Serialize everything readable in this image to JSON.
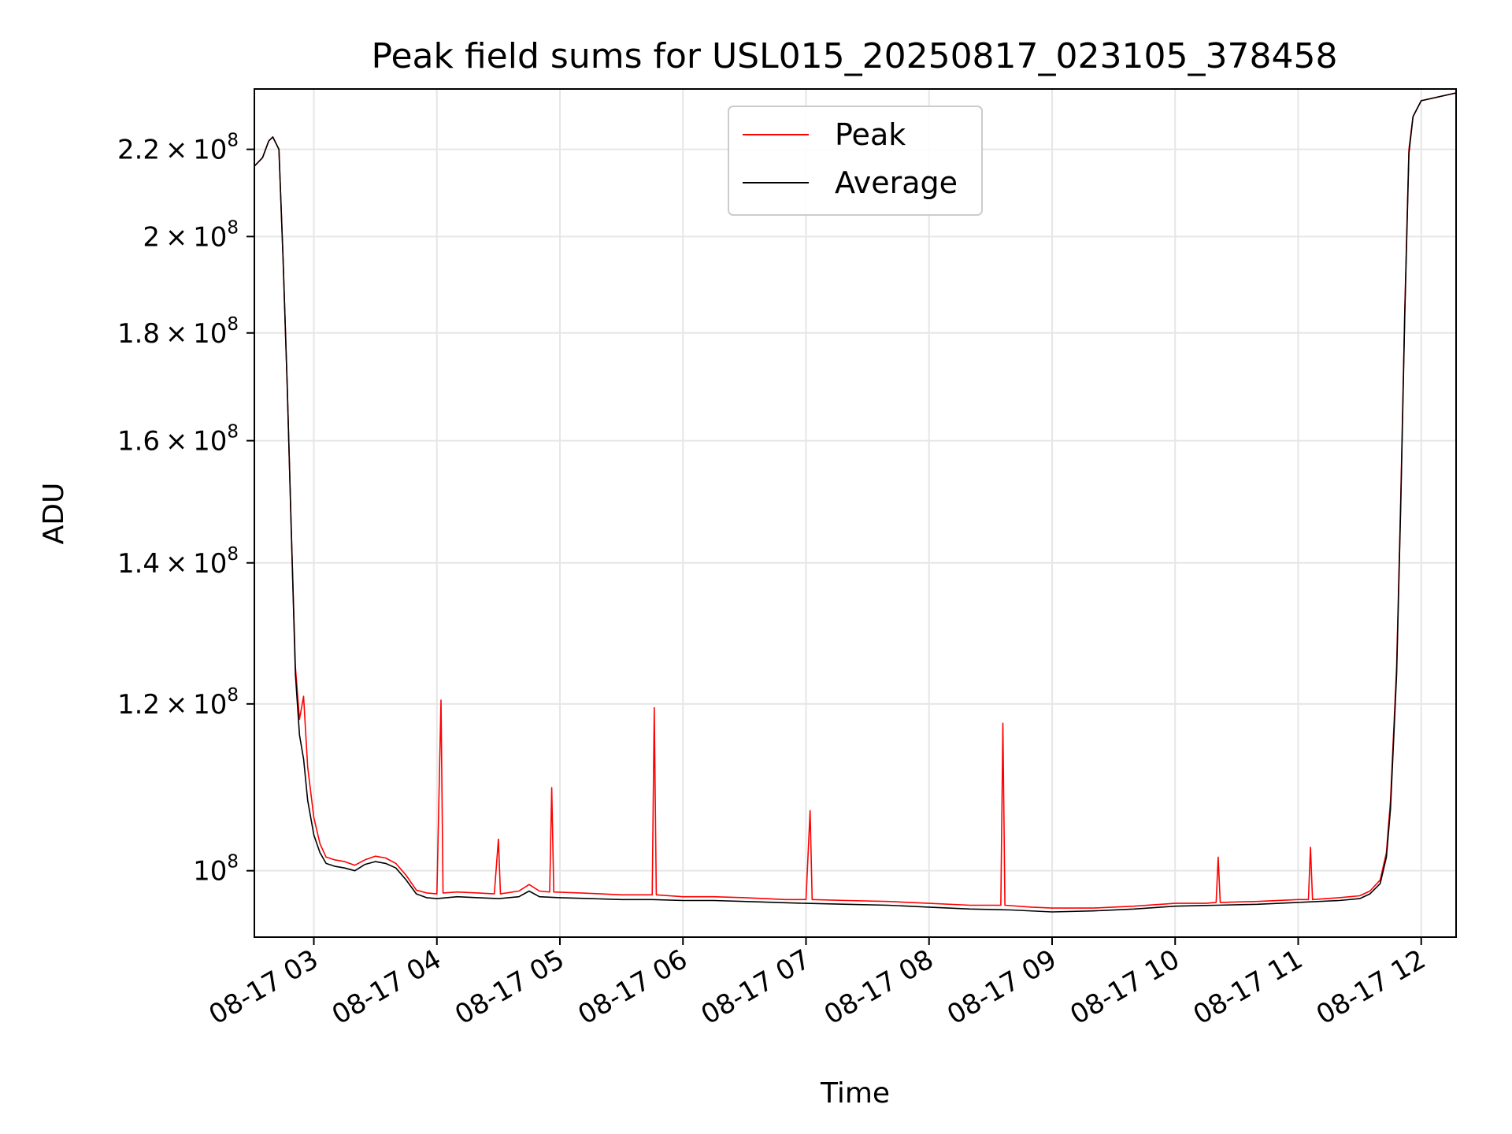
{
  "chart_data": {
    "type": "line",
    "title": "Peak field sums for USL015_20250817_023105_378458",
    "xlabel": "Time",
    "ylabel": "ADU",
    "y_scale": "log",
    "grid": true,
    "legend_placement": "upper-center",
    "xlim": [
      "08-17 02:31",
      "08-17 12:17"
    ],
    "ylim": [
      93000000,
      235000000
    ],
    "x_ticks": [
      {
        "value": "08-17 03:00",
        "label": "08-17 03"
      },
      {
        "value": "08-17 04:00",
        "label": "08-17 04"
      },
      {
        "value": "08-17 05:00",
        "label": "08-17 05"
      },
      {
        "value": "08-17 06:00",
        "label": "08-17 06"
      },
      {
        "value": "08-17 07:00",
        "label": "08-17 07"
      },
      {
        "value": "08-17 08:00",
        "label": "08-17 08"
      },
      {
        "value": "08-17 09:00",
        "label": "08-17 09"
      },
      {
        "value": "08-17 10:00",
        "label": "08-17 10"
      },
      {
        "value": "08-17 11:00",
        "label": "08-17 11"
      },
      {
        "value": "08-17 12:00",
        "label": "08-17 12"
      }
    ],
    "y_ticks": [
      {
        "value": 100000000,
        "mantissa": "",
        "exponent": "8"
      },
      {
        "value": 120000000,
        "mantissa": "1.2",
        "exponent": "8"
      },
      {
        "value": 140000000,
        "mantissa": "1.4",
        "exponent": "8"
      },
      {
        "value": 160000000,
        "mantissa": "1.6",
        "exponent": "8"
      },
      {
        "value": 180000000,
        "mantissa": "1.8",
        "exponent": "8"
      },
      {
        "value": 200000000,
        "mantissa": "2",
        "exponent": "8"
      },
      {
        "value": 220000000,
        "mantissa": "2.2",
        "exponent": "8"
      }
    ],
    "series": [
      {
        "name": "Peak",
        "color": "#ff0000",
        "points": [
          [
            "08-17 02:31",
            216000000
          ],
          [
            "08-17 02:35",
            218000000
          ],
          [
            "08-17 02:38",
            222000000
          ],
          [
            "08-17 02:40",
            223000000
          ],
          [
            "08-17 02:43",
            220000000
          ],
          [
            "08-17 02:45",
            195000000
          ],
          [
            "08-17 02:47",
            170000000
          ],
          [
            "08-17 02:49",
            145000000
          ],
          [
            "08-17 02:51",
            125000000
          ],
          [
            "08-17 02:53",
            118000000
          ],
          [
            "08-17 02:55",
            121000000
          ],
          [
            "08-17 02:57",
            112000000
          ],
          [
            "08-17 03:00",
            106000000
          ],
          [
            "08-17 03:03",
            103000000
          ],
          [
            "08-17 03:06",
            101500000
          ],
          [
            "08-17 03:10",
            101200000
          ],
          [
            "08-17 03:15",
            101000000
          ],
          [
            "08-17 03:20",
            100600000
          ],
          [
            "08-17 03:25",
            101200000
          ],
          [
            "08-17 03:30",
            101600000
          ],
          [
            "08-17 03:35",
            101400000
          ],
          [
            "08-17 03:40",
            100800000
          ],
          [
            "08-17 03:45",
            99500000
          ],
          [
            "08-17 03:50",
            97900000
          ],
          [
            "08-17 03:55",
            97600000
          ],
          [
            "08-17 04:00",
            97500000
          ],
          [
            "08-17 04:02",
            120500000
          ],
          [
            "08-17 04:03",
            97600000
          ],
          [
            "08-17 04:10",
            97700000
          ],
          [
            "08-17 04:20",
            97600000
          ],
          [
            "08-17 04:28",
            97500000
          ],
          [
            "08-17 04:30",
            103500000
          ],
          [
            "08-17 04:31",
            97500000
          ],
          [
            "08-17 04:40",
            97800000
          ],
          [
            "08-17 04:45",
            98500000
          ],
          [
            "08-17 04:50",
            97800000
          ],
          [
            "08-17 04:55",
            97700000
          ],
          [
            "08-17 04:56",
            109500000
          ],
          [
            "08-17 04:57",
            97700000
          ],
          [
            "08-17 05:10",
            97600000
          ],
          [
            "08-17 05:20",
            97500000
          ],
          [
            "08-17 05:30",
            97400000
          ],
          [
            "08-17 05:40",
            97400000
          ],
          [
            "08-17 05:45",
            97400000
          ],
          [
            "08-17 05:46",
            119500000
          ],
          [
            "08-17 05:47",
            97400000
          ],
          [
            "08-17 06:00",
            97200000
          ],
          [
            "08-17 06:15",
            97200000
          ],
          [
            "08-17 06:30",
            97100000
          ],
          [
            "08-17 06:40",
            97000000
          ],
          [
            "08-17 06:50",
            96900000
          ],
          [
            "08-17 07:00",
            96900000
          ],
          [
            "08-17 07:02",
            106800000
          ],
          [
            "08-17 07:03",
            96900000
          ],
          [
            "08-17 07:20",
            96800000
          ],
          [
            "08-17 07:40",
            96700000
          ],
          [
            "08-17 08:00",
            96500000
          ],
          [
            "08-17 08:20",
            96300000
          ],
          [
            "08-17 08:35",
            96300000
          ],
          [
            "08-17 08:36",
            117500000
          ],
          [
            "08-17 08:37",
            96300000
          ],
          [
            "08-17 08:50",
            96100000
          ],
          [
            "08-17 09:00",
            96000000
          ],
          [
            "08-17 09:20",
            96000000
          ],
          [
            "08-17 09:40",
            96200000
          ],
          [
            "08-17 10:00",
            96500000
          ],
          [
            "08-17 10:15",
            96500000
          ],
          [
            "08-17 10:20",
            96600000
          ],
          [
            "08-17 10:21",
            101500000
          ],
          [
            "08-17 10:22",
            96600000
          ],
          [
            "08-17 10:40",
            96700000
          ],
          [
            "08-17 11:00",
            96900000
          ],
          [
            "08-17 11:05",
            96900000
          ],
          [
            "08-17 11:06",
            102600000
          ],
          [
            "08-17 11:07",
            96900000
          ],
          [
            "08-17 11:20",
            97100000
          ],
          [
            "08-17 11:30",
            97300000
          ],
          [
            "08-17 11:35",
            97800000
          ],
          [
            "08-17 11:40",
            99000000
          ],
          [
            "08-17 11:43",
            102000000
          ],
          [
            "08-17 11:45",
            108000000
          ],
          [
            "08-17 11:48",
            125000000
          ],
          [
            "08-17 11:50",
            150000000
          ],
          [
            "08-17 11:52",
            185000000
          ],
          [
            "08-17 11:54",
            220000000
          ],
          [
            "08-17 11:56",
            228000000
          ],
          [
            "08-17 12:00",
            232000000
          ],
          [
            "08-17 12:17",
            234000000
          ]
        ]
      },
      {
        "name": "Average",
        "color": "#000000",
        "points": [
          [
            "08-17 02:31",
            216000000
          ],
          [
            "08-17 02:35",
            218000000
          ],
          [
            "08-17 02:38",
            222000000
          ],
          [
            "08-17 02:40",
            223000000
          ],
          [
            "08-17 02:43",
            220000000
          ],
          [
            "08-17 02:45",
            195000000
          ],
          [
            "08-17 02:47",
            170000000
          ],
          [
            "08-17 02:49",
            145000000
          ],
          [
            "08-17 02:51",
            124000000
          ],
          [
            "08-17 02:53",
            116000000
          ],
          [
            "08-17 02:55",
            113000000
          ],
          [
            "08-17 02:57",
            108000000
          ],
          [
            "08-17 03:00",
            104000000
          ],
          [
            "08-17 03:03",
            102000000
          ],
          [
            "08-17 03:06",
            100800000
          ],
          [
            "08-17 03:10",
            100500000
          ],
          [
            "08-17 03:15",
            100300000
          ],
          [
            "08-17 03:20",
            100000000
          ],
          [
            "08-17 03:25",
            100700000
          ],
          [
            "08-17 03:30",
            101000000
          ],
          [
            "08-17 03:35",
            100800000
          ],
          [
            "08-17 03:40",
            100300000
          ],
          [
            "08-17 03:45",
            99000000
          ],
          [
            "08-17 03:50",
            97500000
          ],
          [
            "08-17 03:55",
            97100000
          ],
          [
            "08-17 04:00",
            97000000
          ],
          [
            "08-17 04:10",
            97200000
          ],
          [
            "08-17 04:20",
            97100000
          ],
          [
            "08-17 04:30",
            97000000
          ],
          [
            "08-17 04:40",
            97200000
          ],
          [
            "08-17 04:45",
            97800000
          ],
          [
            "08-17 04:50",
            97200000
          ],
          [
            "08-17 05:00",
            97100000
          ],
          [
            "08-17 05:15",
            97000000
          ],
          [
            "08-17 05:30",
            96900000
          ],
          [
            "08-17 05:45",
            96900000
          ],
          [
            "08-17 06:00",
            96800000
          ],
          [
            "08-17 06:15",
            96800000
          ],
          [
            "08-17 06:30",
            96700000
          ],
          [
            "08-17 06:45",
            96600000
          ],
          [
            "08-17 07:00",
            96500000
          ],
          [
            "08-17 07:20",
            96400000
          ],
          [
            "08-17 07:40",
            96300000
          ],
          [
            "08-17 08:00",
            96100000
          ],
          [
            "08-17 08:20",
            95900000
          ],
          [
            "08-17 08:40",
            95800000
          ],
          [
            "08-17 09:00",
            95600000
          ],
          [
            "08-17 09:20",
            95700000
          ],
          [
            "08-17 09:40",
            95900000
          ],
          [
            "08-17 10:00",
            96200000
          ],
          [
            "08-17 10:20",
            96300000
          ],
          [
            "08-17 10:40",
            96400000
          ],
          [
            "08-17 11:00",
            96600000
          ],
          [
            "08-17 11:20",
            96800000
          ],
          [
            "08-17 11:30",
            97000000
          ],
          [
            "08-17 11:35",
            97500000
          ],
          [
            "08-17 11:40",
            98600000
          ],
          [
            "08-17 11:43",
            101500000
          ],
          [
            "08-17 11:45",
            107000000
          ],
          [
            "08-17 11:48",
            124000000
          ],
          [
            "08-17 11:50",
            149000000
          ],
          [
            "08-17 11:52",
            184000000
          ],
          [
            "08-17 11:54",
            219000000
          ],
          [
            "08-17 11:56",
            228000000
          ],
          [
            "08-17 12:00",
            232000000
          ],
          [
            "08-17 12:17",
            234000000
          ]
        ]
      }
    ]
  }
}
